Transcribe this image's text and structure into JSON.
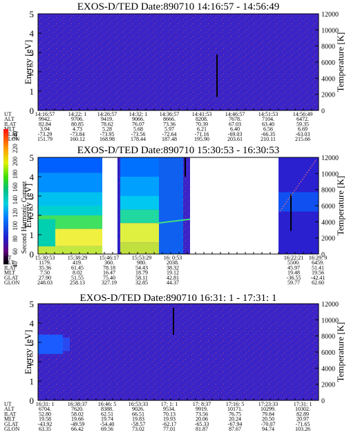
{
  "chart_data": [
    {
      "type": "heatmap",
      "title": "EXOS-D/TED   Date:890710   14:16:57 - 14:56:49",
      "ylabel": "Energy [eV]",
      "y2label": "Temperature [K]",
      "yticks": [
        "0",
        "1",
        "2",
        "3",
        "4",
        "5"
      ],
      "y2ticks": [
        "0",
        "2000",
        "4000",
        "6000",
        "8000",
        "10000",
        "12000"
      ],
      "ylim": [
        0,
        5
      ],
      "y2lim": [
        0,
        12000
      ],
      "orbit_labels": [
        "UT",
        "ALT",
        "ILAT",
        "MLT",
        "GLAT",
        "GLON"
      ],
      "orbit_columns": [
        [
          "14:16:57",
          "9942.",
          "82.84",
          "3.94",
          "-73.29",
          "151.79"
        ],
        [
          "14:22: 1",
          "9706.",
          "80.85",
          "4.73",
          "-73.84",
          "160.12"
        ],
        [
          "14:26:57",
          "9419.",
          "78.62",
          "5.28",
          "-73.95",
          "168.98"
        ],
        [
          "14:32: 1",
          "9066.",
          "76.07",
          "5.68",
          "-73.56",
          "178.44"
        ],
        [
          "14:36:57",
          "8666.",
          "73.36",
          "5.97",
          "-72.64",
          "187.48"
        ],
        [
          "14:41:53",
          "8208.",
          "70.39",
          "6.21",
          "-71.16",
          "195.90"
        ],
        [
          "14:46:57",
          "7678.",
          "67.03",
          "6.40",
          "-69.03",
          "203.61"
        ],
        [
          "14:51:53",
          "7104.",
          "63.40",
          "6.56",
          "-66.35",
          "210.11"
        ],
        [
          "14:56:49",
          "6472.",
          "59.35",
          "6.69",
          "-63.03",
          "215.66"
        ]
      ]
    },
    {
      "type": "heatmap",
      "title": "EXOS-D/TED   Date:890710   15:30:53 - 16:30:53",
      "ylabel": "Energy [eV]",
      "y2label": "Temperature [K]",
      "yticks": [
        "0",
        "1",
        "2",
        "3",
        "4",
        "5"
      ],
      "y2ticks": [
        "0",
        "2000",
        "4000",
        "6000",
        "8000",
        "10000",
        "12000"
      ],
      "ylim": [
        0,
        5
      ],
      "y2lim": [
        0,
        12000
      ],
      "colorbar": {
        "label": "Second Harmonic Current",
        "ticks": [
          "40",
          "60",
          "80",
          "100",
          "120",
          "140",
          "160",
          "180",
          "200",
          "220",
          "240"
        ],
        "range": [
          40,
          250
        ]
      },
      "orbit_labels": [
        "UT",
        "ALT",
        "ILAT",
        "MLT",
        "GLAT",
        "GLON"
      ],
      "orbit_columns": [
        [
          "15:30:53",
          "1179.",
          "35.36",
          "7.50",
          "27.90",
          "248.03"
        ],
        [
          "15:38:29",
          "419.",
          "61.45",
          "8.02",
          "51.55",
          "258.13"
        ],
        [
          "15:46:17",
          "360.",
          "78.18",
          "16.47",
          "75.40",
          "327.19"
        ],
        [
          "15:53:29",
          "980.",
          "54.43",
          "18.79",
          "58.11",
          "32.85"
        ],
        [
          "16: 0:53",
          "2038.",
          "38.32",
          "19.12",
          "42.81",
          "44.37"
        ],
        [
          "16:22:21",
          "5500.",
          "45.97",
          "19.48",
          "-36.55",
          "59.77"
        ],
        [
          "16:29: 9",
          "6459.",
          "51.41",
          "19.56",
          "-42.41",
          "62.60"
        ]
      ]
    },
    {
      "type": "heatmap",
      "title": "EXOS-D/TED   Date:890710   16:31: 1 - 17:31: 1",
      "ylabel": "Energy [eV]",
      "y2label": "Temperature [K]",
      "yticks": [
        "0",
        "1",
        "2",
        "3",
        "4",
        "5"
      ],
      "y2ticks": [
        "0",
        "2000",
        "4000",
        "6000",
        "8000",
        "10000",
        "12000"
      ],
      "ylim": [
        0,
        5
      ],
      "y2lim": [
        0,
        12000
      ],
      "orbit_labels": [
        "UT",
        "ALT",
        "ILAT",
        "MLT",
        "GLAT",
        "GLON"
      ],
      "orbit_columns": [
        [
          "16:31: 1",
          "6704.",
          "52.80",
          "19.58",
          "-43.92",
          "63.35"
        ],
        [
          "16:38:37",
          "7620.",
          "58.02",
          "19.66",
          "-49.59",
          "66.42"
        ],
        [
          "16:46: 5",
          "8388.",
          "62.51",
          "19.74",
          "-54.40",
          "69.56"
        ],
        [
          "16:53:33",
          "9026.",
          "66.51",
          "19.83",
          "-58.57",
          "73.02"
        ],
        [
          "17: 1: 1",
          "9534.",
          "70.13",
          "19.93",
          "-62.17",
          "77.01"
        ],
        [
          "17: 8:37",
          "9919.",
          "73.56",
          "20.06",
          "-65.33",
          "81.87"
        ],
        [
          "17:16: 5",
          "10171.",
          "76.75",
          "20.24",
          "-67.94",
          "87.67"
        ],
        [
          "17:23:33",
          "10299.",
          "79.84",
          "20.50",
          "-70.07",
          "94.74"
        ],
        [
          "17:31: 1",
          "10302.",
          "82.89",
          "20.97",
          "-71.65",
          "103.26"
        ]
      ]
    }
  ],
  "colors": {
    "background_field": "#3a24c8",
    "noise": "#b04060",
    "gap": "#ffffff"
  }
}
